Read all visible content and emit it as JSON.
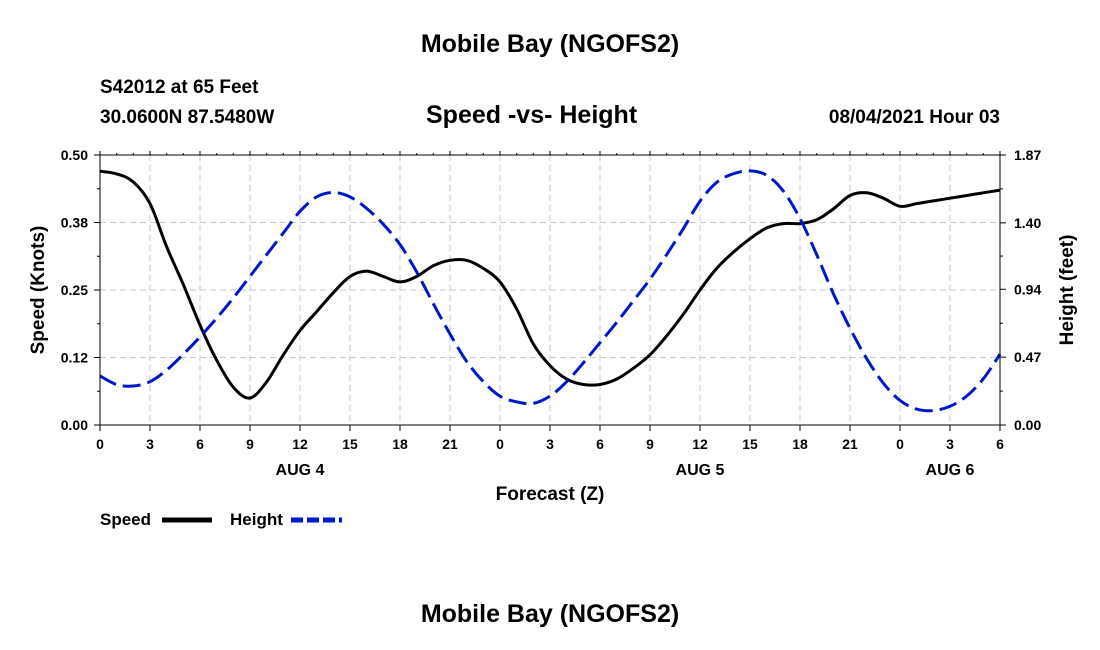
{
  "header": {
    "title": "Mobile Bay (NGOFS2)",
    "station": "S42012 at 65 Feet",
    "coords": "30.0600N  87.5480W",
    "chart_title": "Speed -vs- Height",
    "timestamp": "08/04/2021 Hour 03"
  },
  "footer": {
    "title": "Mobile Bay (NGOFS2)"
  },
  "chart_data": {
    "type": "line",
    "title": "Speed -vs- Height",
    "xlabel": "Forecast (Z)",
    "ylabel": "Speed (Knots)",
    "y2label": "Height (feet)",
    "xlim": [
      0,
      54
    ],
    "ylim": [
      0,
      0.5
    ],
    "y2lim": [
      0,
      1.87
    ],
    "grid": true,
    "legend_position": "bottom-left",
    "x_ticks": [
      {
        "x": 0,
        "label": "0"
      },
      {
        "x": 3,
        "label": "3"
      },
      {
        "x": 6,
        "label": "6"
      },
      {
        "x": 9,
        "label": "9"
      },
      {
        "x": 12,
        "label": "12"
      },
      {
        "x": 15,
        "label": "15"
      },
      {
        "x": 18,
        "label": "18"
      },
      {
        "x": 21,
        "label": "21"
      },
      {
        "x": 24,
        "label": "0"
      },
      {
        "x": 27,
        "label": "3"
      },
      {
        "x": 30,
        "label": "6"
      },
      {
        "x": 33,
        "label": "9"
      },
      {
        "x": 36,
        "label": "12"
      },
      {
        "x": 39,
        "label": "15"
      },
      {
        "x": 42,
        "label": "18"
      },
      {
        "x": 45,
        "label": "21"
      },
      {
        "x": 48,
        "label": "0"
      },
      {
        "x": 51,
        "label": "3"
      },
      {
        "x": 54,
        "label": "6"
      }
    ],
    "day_labels": [
      {
        "x": 12,
        "label": "AUG 4"
      },
      {
        "x": 36,
        "label": "AUG 5"
      },
      {
        "x": 51,
        "label": "AUG 6"
      }
    ],
    "y_ticks": [
      {
        "v": 0.0,
        "label": "0.00"
      },
      {
        "v": 0.125,
        "label": "0.12"
      },
      {
        "v": 0.25,
        "label": "0.25"
      },
      {
        "v": 0.375,
        "label": "0.38"
      },
      {
        "v": 0.5,
        "label": "0.50"
      }
    ],
    "y2_ticks": [
      {
        "v": 0.0,
        "label": "0.00"
      },
      {
        "v": 0.47,
        "label": "0.47"
      },
      {
        "v": 0.94,
        "label": "0.94"
      },
      {
        "v": 1.4,
        "label": "1.40"
      },
      {
        "v": 1.87,
        "label": "1.87"
      }
    ],
    "series": [
      {
        "name": "Speed",
        "axis": "left",
        "color": "#000000",
        "dash": "solid",
        "x": [
          0,
          1,
          2,
          3,
          4,
          5,
          6,
          7,
          8,
          9,
          10,
          11,
          12,
          13,
          14,
          15,
          16,
          17,
          18,
          19,
          20,
          21,
          22,
          23,
          24,
          25,
          26,
          27,
          28,
          29,
          30,
          31,
          32,
          33,
          34,
          35,
          36,
          37,
          38,
          39,
          40,
          41,
          42,
          43,
          44,
          45,
          46,
          47,
          48,
          49,
          50,
          51,
          52,
          53,
          54
        ],
        "y": [
          0.47,
          0.465,
          0.45,
          0.41,
          0.33,
          0.26,
          0.185,
          0.12,
          0.07,
          0.05,
          0.08,
          0.13,
          0.175,
          0.21,
          0.245,
          0.275,
          0.285,
          0.275,
          0.265,
          0.275,
          0.295,
          0.305,
          0.305,
          0.29,
          0.265,
          0.215,
          0.15,
          0.11,
          0.085,
          0.075,
          0.075,
          0.085,
          0.105,
          0.13,
          0.165,
          0.205,
          0.25,
          0.29,
          0.32,
          0.345,
          0.365,
          0.373,
          0.373,
          0.38,
          0.4,
          0.425,
          0.43,
          0.42,
          0.405,
          0.41,
          0.415,
          0.42,
          0.425,
          0.43,
          0.435
        ]
      },
      {
        "name": "Height",
        "axis": "right",
        "color": "#0018c8",
        "dash": "dashed",
        "x": [
          0,
          1,
          2,
          3,
          4,
          5,
          6,
          7,
          8,
          9,
          10,
          11,
          12,
          13,
          14,
          15,
          16,
          17,
          18,
          19,
          20,
          21,
          22,
          23,
          24,
          25,
          26,
          27,
          28,
          29,
          30,
          31,
          32,
          33,
          34,
          35,
          36,
          37,
          38,
          39,
          40,
          41,
          42,
          43,
          44,
          45,
          46,
          47,
          48,
          49,
          50,
          51,
          52,
          53,
          54
        ],
        "y": [
          0.34,
          0.28,
          0.27,
          0.3,
          0.38,
          0.49,
          0.61,
          0.74,
          0.88,
          1.03,
          1.18,
          1.33,
          1.48,
          1.58,
          1.61,
          1.58,
          1.5,
          1.39,
          1.25,
          1.06,
          0.84,
          0.63,
          0.44,
          0.3,
          0.2,
          0.16,
          0.15,
          0.2,
          0.3,
          0.43,
          0.57,
          0.71,
          0.86,
          1.01,
          1.18,
          1.36,
          1.55,
          1.68,
          1.74,
          1.76,
          1.73,
          1.62,
          1.43,
          1.18,
          0.91,
          0.67,
          0.46,
          0.29,
          0.17,
          0.11,
          0.1,
          0.13,
          0.2,
          0.32,
          0.49
        ]
      }
    ]
  }
}
